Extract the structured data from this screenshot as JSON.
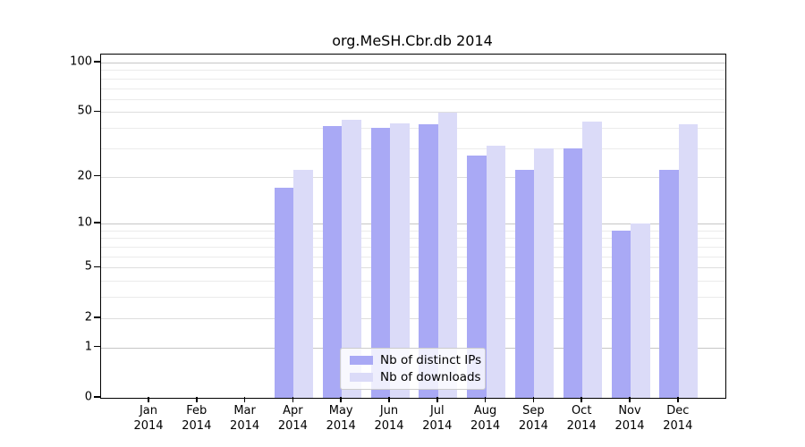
{
  "title": "org.MeSH.Cbr.db 2014",
  "chart_data": {
    "type": "bar",
    "title": "org.MeSH.Cbr.db 2014",
    "categories": [
      "Jan 2014",
      "Feb 2014",
      "Mar 2014",
      "Apr 2014",
      "May 2014",
      "Jun 2014",
      "Jul 2014",
      "Aug 2014",
      "Sep 2014",
      "Oct 2014",
      "Nov 2014",
      "Dec 2014"
    ],
    "series": [
      {
        "name": "Nb of distinct IPs",
        "color": "#a9a9f5",
        "values": [
          0,
          0,
          0,
          17,
          41,
          40,
          42,
          27,
          22,
          30,
          9,
          22
        ]
      },
      {
        "name": "Nb of downloads",
        "color": "#dbdbf8",
        "values": [
          0,
          0,
          0,
          22,
          45,
          43,
          50,
          31,
          30,
          44,
          10,
          42
        ]
      }
    ],
    "yscale": "log1p",
    "ylim": [
      0,
      112
    ],
    "ytick_labels": [
      "0",
      "1",
      "2",
      "5",
      "10",
      "20",
      "50",
      "100"
    ],
    "ytick_values": [
      0,
      1,
      2,
      5,
      10,
      20,
      50,
      100
    ],
    "grid": true,
    "gridlines": {
      "decade": [
        1,
        10,
        100
      ],
      "labeled_minor": [
        2,
        5,
        20,
        50
      ],
      "unlabeled_minor": [
        3,
        4,
        6,
        7,
        8,
        9,
        30,
        40,
        60,
        70,
        80,
        90
      ]
    },
    "legend_position": "lower center inside plot"
  },
  "colors": {
    "axis": "#000000",
    "grid_decade": "#c6c6c6",
    "grid_labeled": "#dedede",
    "grid_minor": "#ebebeb",
    "background": "#ffffff"
  }
}
